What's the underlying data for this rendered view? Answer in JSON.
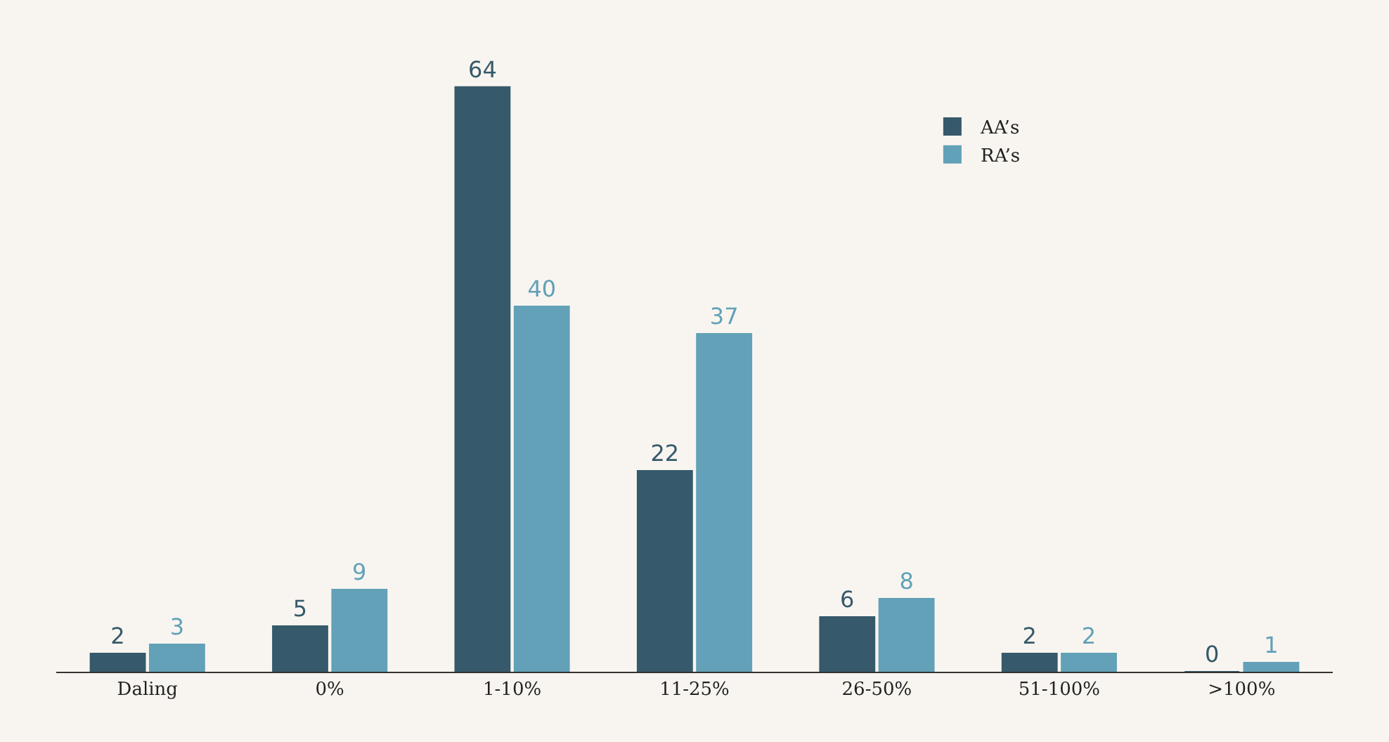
{
  "chart_data": {
    "type": "bar",
    "categories": [
      "Daling",
      "0%",
      "1-10%",
      "11-25%",
      "26-50%",
      "51-100%",
      ">100%"
    ],
    "series": [
      {
        "name": "AA’s",
        "color": "#365a6b",
        "values": [
          2,
          5,
          64,
          22,
          6,
          2,
          0
        ]
      },
      {
        "name": "RA’s",
        "color": "#62a1b8",
        "values": [
          3,
          9,
          40,
          37,
          8,
          2,
          1
        ]
      }
    ],
    "data_labels": true,
    "legend": "top right",
    "grid": false
  }
}
